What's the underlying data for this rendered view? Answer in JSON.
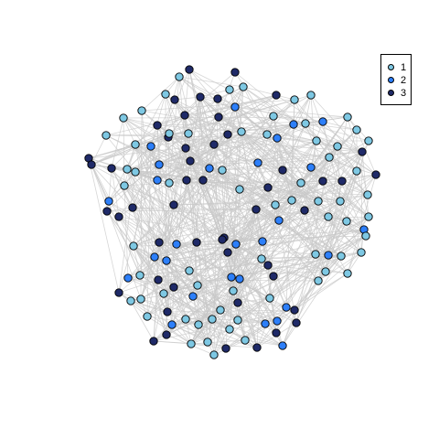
{
  "legend": {
    "items": [
      {
        "label": "1",
        "color": "#7ec8e3"
      },
      {
        "label": "2",
        "color": "#2d7ff9"
      },
      {
        "label": "3",
        "color": "#1f2a68"
      }
    ]
  },
  "edge_color": "#c8c8c8",
  "node_stroke": "#000000"
}
